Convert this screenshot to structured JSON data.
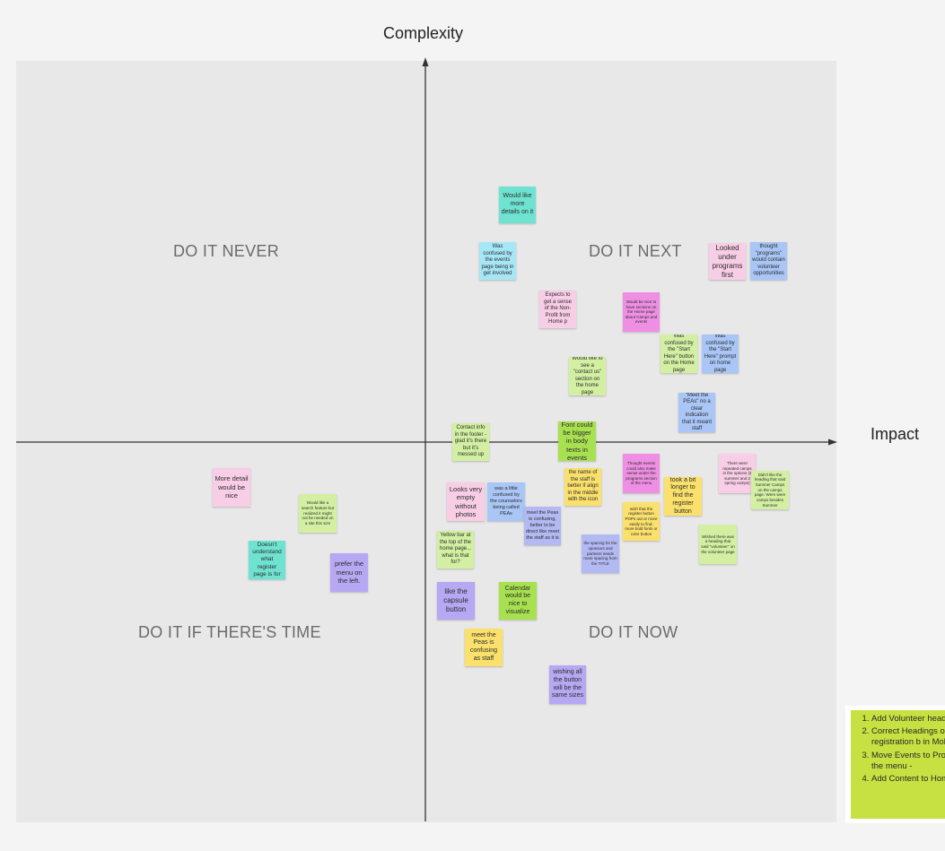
{
  "axes": {
    "vertical_label": "Complexity",
    "horizontal_label": "Impact"
  },
  "quadrants": {
    "top_left": "DO IT NEVER",
    "top_right": "DO IT NEXT",
    "bottom_left": "DO IT IF THERE'S TIME",
    "bottom_right": "DO IT NOW"
  },
  "colors": {
    "board": "#e8e8e8",
    "axis": "#333333",
    "action_list": "#c6e141"
  },
  "sticky_notes": [
    {
      "text": "Would like more details on it",
      "color": "teal"
    },
    {
      "text": "Was confused by the events page being in get involved",
      "color": "cyan"
    },
    {
      "text": "Looked under programs first",
      "color": "pink"
    },
    {
      "text": "thought \"programs\" would contain volunteer opportunities",
      "color": "blue"
    },
    {
      "text": "Expects to get a sense of the Non-Profit from Home p",
      "color": "pink"
    },
    {
      "text": "Would be nice to have sections on the Home page about Camps and events",
      "color": "magenta"
    },
    {
      "text": "Was confused by the \"Start Here\" button on the Home page",
      "color": "light-green"
    },
    {
      "text": "Was confused by the \"Start Here\" prompt on home page",
      "color": "blue"
    },
    {
      "text": "Would like to see a \"contact us\" section on the home page",
      "color": "light-green"
    },
    {
      "text": "\"Meet the PEAs\" no a clear indication that it meant staff",
      "color": "blue"
    },
    {
      "text": "Contact info in the footer - glad it's there but it's messed up",
      "color": "light-green"
    },
    {
      "text": "Font could be bigger in body texts in events",
      "color": "green"
    },
    {
      "text": "More detail would be nice",
      "color": "pink"
    },
    {
      "text": "Would like a search feature but realized it might not be needed on a site this size",
      "color": "light-green"
    },
    {
      "text": "Doesn't understand what register page is for",
      "color": "teal"
    },
    {
      "text": "prefer the menu on the left.",
      "color": "violet"
    },
    {
      "text": "Looks very empty without photos",
      "color": "pink"
    },
    {
      "text": "was a little confused by the counselors being called PEAs",
      "color": "blue"
    },
    {
      "text": "the name of the staff is better if align in the middle with the icon",
      "color": "yellow"
    },
    {
      "text": "Thought events could also make sense under the programs section of the menu",
      "color": "magenta"
    },
    {
      "text": "took a bit longer to find the register button",
      "color": "yellow"
    },
    {
      "text": "There were repeated camps in the options (2 summer and 2 spring camps)",
      "color": "pink"
    },
    {
      "text": "Didn't like the heading that said Summer Camps on the camps page. Were were camps besides Summer",
      "color": "light-green"
    },
    {
      "text": "meet the Peas is confusing, better to be direct like meet the staff as it is",
      "color": "periwinkle"
    },
    {
      "text": "Yellow bar at the top of the home page... what is that for?",
      "color": "light-green"
    },
    {
      "text": "wish that the register button POPs out or more easily to find, more bold fonts or color button",
      "color": "yellow"
    },
    {
      "text": "the spacing for the sponsors and partners needs more spacing from the TITLE",
      "color": "periwinkle"
    },
    {
      "text": "Wished there was a heading that said \"volunteer\" on the volunteer page",
      "color": "light-green"
    },
    {
      "text": "like the capsule button",
      "color": "violet"
    },
    {
      "text": "Calendar would be nice to visualize",
      "color": "green"
    },
    {
      "text": "meet the Peas is confusing as staff",
      "color": "yellow"
    },
    {
      "text": "wishing all the button will be the same sizes",
      "color": "violet"
    }
  ],
  "action_list": [
    "Add Volunteer heading page",
    "Correct Headings on Ca and move registration b in Mobile",
    "Move Events to Program own spot on the menu -",
    "Add Content to Home P"
  ]
}
